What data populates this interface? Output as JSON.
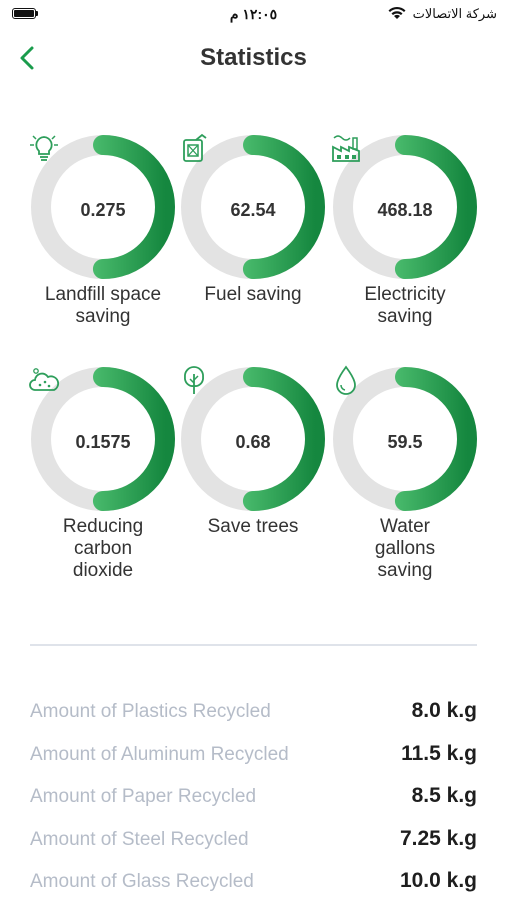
{
  "status_bar": {
    "time": "١٢:٠٥ م",
    "carrier": "شركة الاتصالات"
  },
  "header": {
    "title": "Statistics",
    "back_icon": "chevron-left-icon"
  },
  "colors": {
    "accent": "#1a9c4c",
    "ring_track": "#e3e3e3",
    "ring_light": "#6fe08d",
    "ring_dark": "#15873f"
  },
  "stats": [
    {
      "value": "0.275",
      "label": "Landfill space saving",
      "icon": "lightbulb-icon",
      "progress": 0.5
    },
    {
      "value": "62.54",
      "label": "Fuel saving",
      "icon": "fuel-can-icon",
      "progress": 0.5
    },
    {
      "value": "468.18",
      "label": "Electricity saving",
      "icon": "factory-icon",
      "progress": 0.5
    },
    {
      "value": "0.1575",
      "label": "Reducing carbon dioxide",
      "icon": "cloud-icon",
      "progress": 0.5
    },
    {
      "value": "0.68",
      "label": "Save trees",
      "icon": "tree-icon",
      "progress": 0.5
    },
    {
      "value": "59.5",
      "label": "Water gallons saving",
      "icon": "water-drop-icon",
      "progress": 0.5
    }
  ],
  "recycled": [
    {
      "label": "Amount of Plastics Recycled",
      "value": "8.0 k.g"
    },
    {
      "label": "Amount of Aluminum Recycled",
      "value": "11.5 k.g"
    },
    {
      "label": "Amount of Paper Recycled",
      "value": "8.5 k.g"
    },
    {
      "label": "Amount of Steel Recycled",
      "value": "7.25 k.g"
    },
    {
      "label": "Amount of Glass Recycled",
      "value": "10.0 k.g"
    }
  ]
}
